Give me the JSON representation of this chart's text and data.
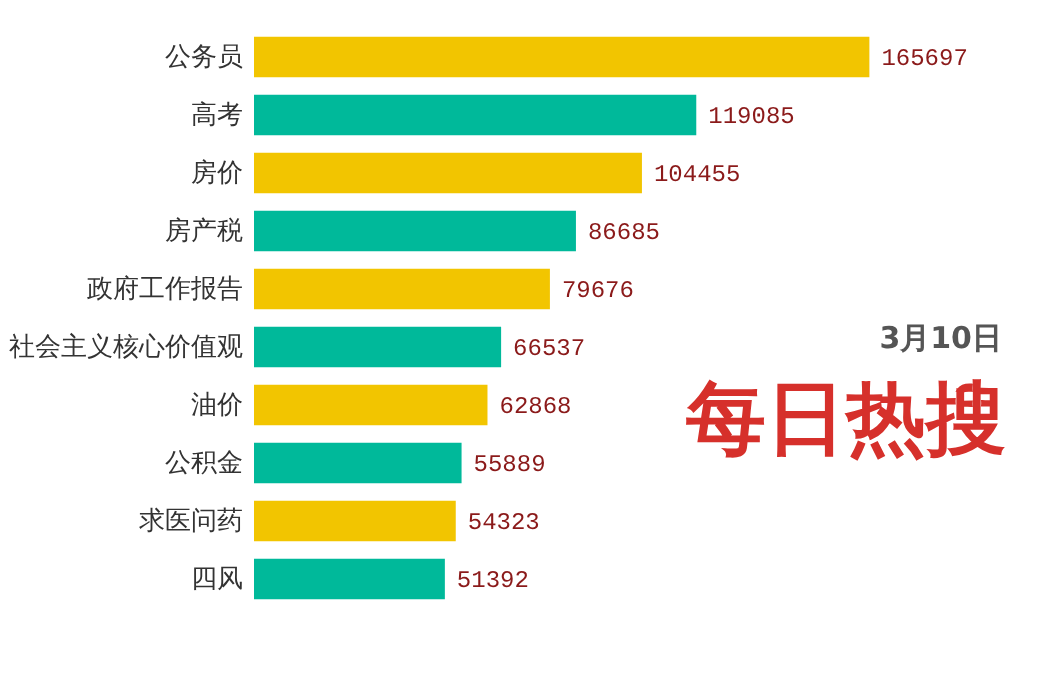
{
  "chart_data": {
    "type": "bar",
    "orientation": "horizontal",
    "title": "每日热搜",
    "subtitle": "3月10日",
    "categories": [
      "公务员",
      "高考",
      "房价",
      "房产税",
      "政府工作报告",
      "社会主义核心价值观",
      "油价",
      "公积金",
      "求医问药",
      "四风"
    ],
    "values": [
      165697,
      119085,
      104455,
      86685,
      79676,
      66537,
      62868,
      55889,
      54323,
      51392
    ],
    "colors": [
      "#f2c500",
      "#00b99a",
      "#f2c500",
      "#00b99a",
      "#f2c500",
      "#00b99a",
      "#f2c500",
      "#00b99a",
      "#f2c500",
      "#00b99a"
    ],
    "data_labels": true
  }
}
